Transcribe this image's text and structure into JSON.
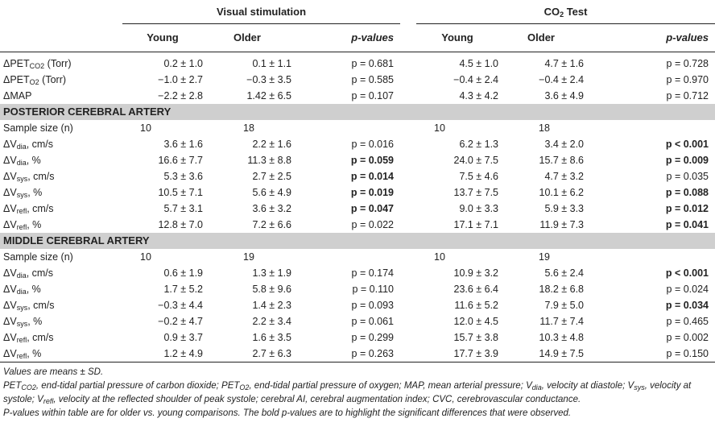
{
  "header": {
    "visual": "Visual stimulation",
    "co2_main": "CO",
    "co2_sub": "2",
    "co2_tail": " Test",
    "young": "Young",
    "older": "Older",
    "pvalues": "p-values"
  },
  "gas_rows": [
    {
      "label_main": "ΔPET",
      "label_sub": "CO2",
      "label_tail": " (Torr)",
      "vy": "0.2 ± 1.0",
      "vo": "0.1 ± 1.1",
      "vp": "p = 0.681",
      "cy": "4.5 ± 1.0",
      "co": "4.7 ± 1.6",
      "cp": "p = 0.728"
    },
    {
      "label_main": "ΔPET",
      "label_sub": "O2",
      "label_tail": " (Torr)",
      "vy": "−1.0 ± 2.7",
      "vo": "−0.3 ± 3.5",
      "vp": "p = 0.585",
      "cy": "−0.4 ± 2.4",
      "co": "−0.4 ± 2.4",
      "cp": "p = 0.970"
    },
    {
      "label_main": "ΔMAP",
      "label_sub": "",
      "label_tail": "",
      "vy": "−2.2 ± 2.8",
      "vo": "1.42 ± 6.5",
      "vp": "p = 0.107",
      "cy": "4.3 ± 4.2",
      "co": "3.6 ± 4.9",
      "cp": "p = 0.712"
    }
  ],
  "pca": {
    "title": "POSTERIOR CEREBRAL ARTERY",
    "sample": {
      "label": "Sample size (n)",
      "vy": "10",
      "vo": "18",
      "cy": "10",
      "co": "18"
    },
    "rows": [
      {
        "label_main": "ΔV",
        "label_sub": "dia",
        "label_tail": ", cm/s",
        "vy": "3.6 ± 1.6",
        "vo": "2.2 ± 1.6",
        "vp": "p = 0.016",
        "cy": "6.2 ± 1.3",
        "co": "3.4 ± 2.0",
        "cp": "p < 0.001"
      },
      {
        "label_main": "ΔV",
        "label_sub": "dia",
        "label_tail": ", %",
        "vy": "16.6 ± 7.7",
        "vo": "11.3 ± 8.8",
        "vp": "p = 0.059",
        "cy": "24.0 ± 7.5",
        "co": "15.7 ± 8.6",
        "cp": "p = 0.009"
      },
      {
        "label_main": "ΔV",
        "label_sub": "sys",
        "label_tail": ", cm/s",
        "vy": "5.3 ± 3.6",
        "vo": "2.7 ± 2.5",
        "vp": "p = 0.014",
        "cy": "7.5 ± 4.6",
        "co": "4.7 ± 3.2",
        "cp": "p = 0.035"
      },
      {
        "label_main": "ΔV",
        "label_sub": "sys",
        "label_tail": ", %",
        "vy": "10.5 ± 7.1",
        "vo": "5.6 ± 4.9",
        "vp": "p = 0.019",
        "cy": "13.7 ± 7.5",
        "co": "10.1 ± 6.2",
        "cp": "p = 0.088"
      },
      {
        "label_main": "ΔV",
        "label_sub": "refl",
        "label_tail": ", cm/s",
        "vy": "5.7 ± 3.1",
        "vo": "3.6 ± 3.2",
        "vp": "p = 0.047",
        "cy": "9.0 ± 3.3",
        "co": "5.9 ± 3.3",
        "cp": "p = 0.012"
      },
      {
        "label_main": "ΔV",
        "label_sub": "refl",
        "label_tail": ", %",
        "vy": "12.8 ± 7.0",
        "vo": "7.2 ± 6.6",
        "vp": "p = 0.022",
        "cy": "17.1 ± 7.1",
        "co": "11.9 ± 7.3",
        "cp": "p = 0.041"
      }
    ]
  },
  "mca": {
    "title": "MIDDLE CEREBRAL ARTERY",
    "sample": {
      "label": "Sample size (n)",
      "vy": "10",
      "vo": "19",
      "cy": "10",
      "co": "19"
    },
    "rows": [
      {
        "label_main": "ΔV",
        "label_sub": "dia",
        "label_tail": ", cm/s",
        "vy": "0.6 ± 1.9",
        "vo": "1.3 ± 1.9",
        "vp": "p = 0.174",
        "cy": "10.9 ± 3.2",
        "co": "5.6 ± 2.4",
        "cp": "p < 0.001"
      },
      {
        "label_main": "ΔV",
        "label_sub": "dia",
        "label_tail": ", %",
        "vy": "1.7 ± 5.2",
        "vo": "5.8 ± 9.6",
        "vp": "p = 0.110",
        "cy": "23.6 ± 6.4",
        "co": "18.2 ± 6.8",
        "cp": "p = 0.024"
      },
      {
        "label_main": "ΔV",
        "label_sub": "sys",
        "label_tail": ", cm/s",
        "vy": "−0.3 ± 4.4",
        "vo": "1.4 ± 2.3",
        "vp": "p = 0.093",
        "cy": "11.6 ± 5.2",
        "co": "7.9 ± 5.0",
        "cp": "p = 0.034"
      },
      {
        "label_main": "ΔV",
        "label_sub": "sys",
        "label_tail": ", %",
        "vy": "−0.2 ± 4.7",
        "vo": "2.2 ± 3.4",
        "vp": "p = 0.061",
        "cy": "12.0 ± 4.5",
        "co": "11.7 ± 7.4",
        "cp": "p = 0.465"
      },
      {
        "label_main": "ΔV",
        "label_sub": "refl",
        "label_tail": ", cm/s",
        "vy": "0.9 ± 3.7",
        "vo": "1.6 ± 3.5",
        "vp": "p = 0.299",
        "cy": "15.7 ± 3.8",
        "co": "10.3 ± 4.8",
        "cp": "p = 0.002"
      },
      {
        "label_main": "ΔV",
        "label_sub": "refl",
        "label_tail": ", %",
        "vy": "1.2 ± 4.9",
        "vo": "2.7 ± 6.3",
        "vp": "p = 0.263",
        "cy": "17.7 ± 3.9",
        "co": "14.9 ± 7.5",
        "cp": "p = 0.150"
      }
    ]
  },
  "notes": {
    "line1": "Values are means ± SD.",
    "line2_a": "PET",
    "line2_a_sub": "CO2",
    "line2_b": ", end-tidal partial pressure of carbon dioxide; PET",
    "line2_b_sub": "O2",
    "line2_c": ", end-tidal partial pressure of oxygen; MAP, mean arterial pressure; V",
    "line2_c_sub": "dia",
    "line2_d": ", velocity at diastole; V",
    "line2_d_sub": "sys",
    "line2_e": ", velocity at systole; V",
    "line2_e_sub": "refl",
    "line2_f": ", velocity at the reflected shoulder of peak systole; cerebral AI, cerebral augmentation index; CVC, cerebrovascular conductance.",
    "line3": "P-values within table are for older vs. young comparisons. The bold p-values are to highlight the significant differences that were observed."
  },
  "bold_visual": [
    false,
    false,
    false,
    true,
    false,
    true,
    true,
    true,
    true,
    false,
    false,
    false,
    false,
    false,
    false
  ],
  "bold_co2": [
    false,
    false,
    false,
    true,
    true,
    true,
    false,
    true,
    true,
    true,
    true,
    true,
    false,
    true,
    false
  ]
}
